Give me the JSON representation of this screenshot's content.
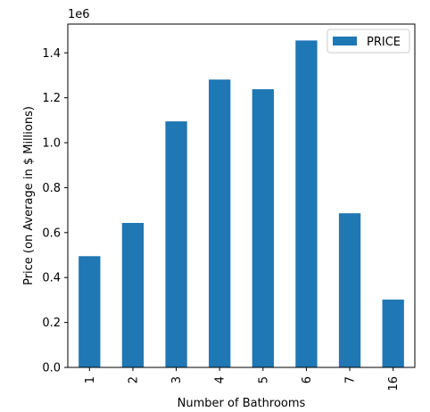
{
  "chart_data": {
    "type": "bar",
    "categories": [
      "1",
      "2",
      "3",
      "4",
      "5",
      "6",
      "7",
      "16"
    ],
    "series": [
      {
        "name": "PRICE",
        "values": [
          495000,
          643000,
          1095000,
          1281000,
          1238000,
          1455000,
          686000,
          302000
        ]
      }
    ],
    "title": "",
    "xlabel": "Number of Bathrooms",
    "ylabel": "Price (on Average in $ Millions)",
    "y_multiplier_label": "1e6",
    "ylim": [
      0,
      1528000
    ],
    "y_ticks": [
      0,
      0.2,
      0.4,
      0.6,
      0.8,
      1.0,
      1.2,
      1.4
    ],
    "y_tick_labels": [
      "0.0",
      "0.2",
      "0.4",
      "0.6",
      "0.8",
      "1.0",
      "1.2",
      "1.4"
    ],
    "y_tick_scale": 1000000,
    "legend_position": "top-right",
    "grid": false,
    "bar_color": "#1f77b4"
  }
}
